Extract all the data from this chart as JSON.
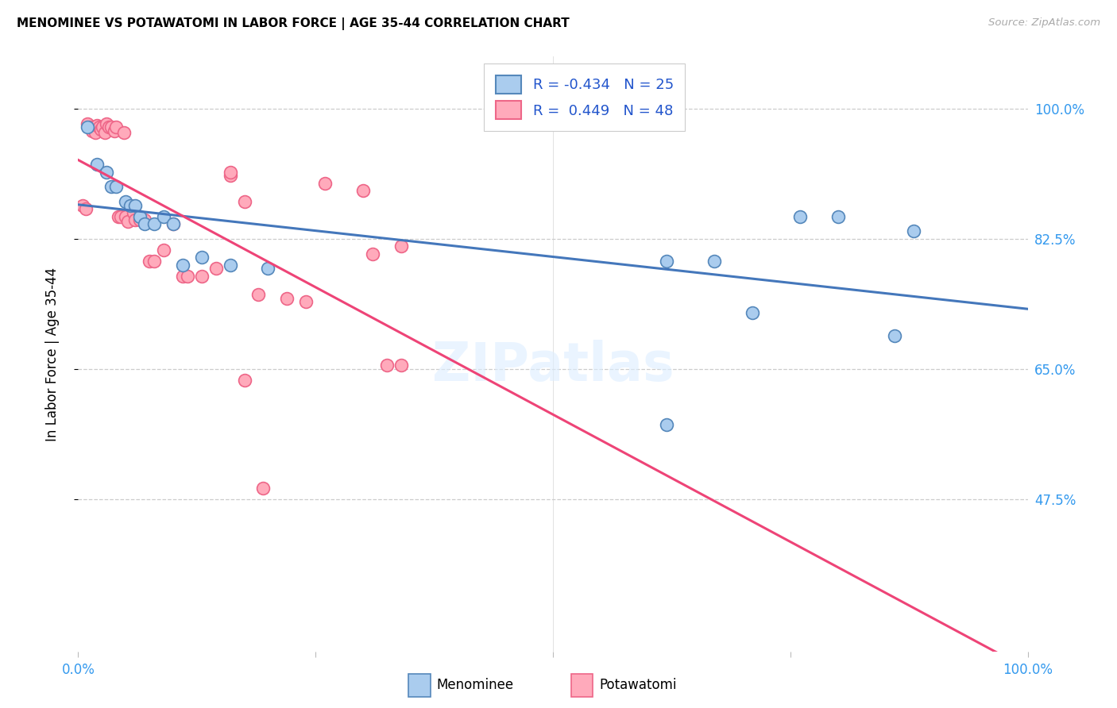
{
  "title": "MENOMINEE VS POTAWATOMI IN LABOR FORCE | AGE 35-44 CORRELATION CHART",
  "source": "Source: ZipAtlas.com",
  "ylabel": "In Labor Force | Age 35-44",
  "legend_label1": "Menominee",
  "legend_label2": "Potawatomi",
  "R_menominee": -0.434,
  "N_menominee": 25,
  "R_potawatomi": 0.449,
  "N_potawatomi": 48,
  "blue_face": "#AACCEE",
  "blue_edge": "#5588BB",
  "pink_face": "#FFAABB",
  "pink_edge": "#EE6688",
  "blue_line": "#4477BB",
  "pink_line": "#EE4477",
  "axis_color": "#3399EE",
  "xlim": [
    0.0,
    1.0
  ],
  "ylim": [
    0.27,
    1.07
  ],
  "ytick_vals": [
    1.0,
    0.825,
    0.65,
    0.475
  ],
  "ytick_labels": [
    "100.0%",
    "82.5%",
    "65.0%",
    "47.5%"
  ],
  "menominee_x": [
    0.01,
    0.02,
    0.03,
    0.035,
    0.04,
    0.05,
    0.055,
    0.06,
    0.065,
    0.07,
    0.08,
    0.09,
    0.1,
    0.11,
    0.13,
    0.16,
    0.2,
    0.62,
    0.67,
    0.71,
    0.76,
    0.8,
    0.86,
    0.88,
    0.62
  ],
  "menominee_y": [
    0.975,
    0.925,
    0.915,
    0.895,
    0.895,
    0.875,
    0.87,
    0.87,
    0.855,
    0.845,
    0.845,
    0.855,
    0.845,
    0.79,
    0.8,
    0.79,
    0.785,
    0.795,
    0.795,
    0.725,
    0.855,
    0.855,
    0.695,
    0.835,
    0.575
  ],
  "potawatomi_x": [
    0.005,
    0.008,
    0.01,
    0.012,
    0.015,
    0.018,
    0.02,
    0.022,
    0.024,
    0.026,
    0.028,
    0.03,
    0.032,
    0.035,
    0.038,
    0.04,
    0.042,
    0.045,
    0.048,
    0.05,
    0.052,
    0.055,
    0.058,
    0.06,
    0.065,
    0.07,
    0.075,
    0.08,
    0.09,
    0.1,
    0.11,
    0.115,
    0.13,
    0.145,
    0.16,
    0.175,
    0.19,
    0.22,
    0.24,
    0.26,
    0.3,
    0.31,
    0.325,
    0.34,
    0.16,
    0.175,
    0.195,
    0.34
  ],
  "potawatomi_y": [
    0.87,
    0.865,
    0.98,
    0.975,
    0.97,
    0.968,
    0.978,
    0.975,
    0.972,
    0.975,
    0.968,
    0.98,
    0.975,
    0.975,
    0.97,
    0.975,
    0.855,
    0.855,
    0.968,
    0.855,
    0.848,
    0.87,
    0.86,
    0.85,
    0.85,
    0.85,
    0.795,
    0.795,
    0.81,
    0.845,
    0.775,
    0.775,
    0.775,
    0.785,
    0.91,
    0.875,
    0.75,
    0.745,
    0.74,
    0.9,
    0.89,
    0.805,
    0.655,
    0.655,
    0.915,
    0.635,
    0.49,
    0.815
  ]
}
